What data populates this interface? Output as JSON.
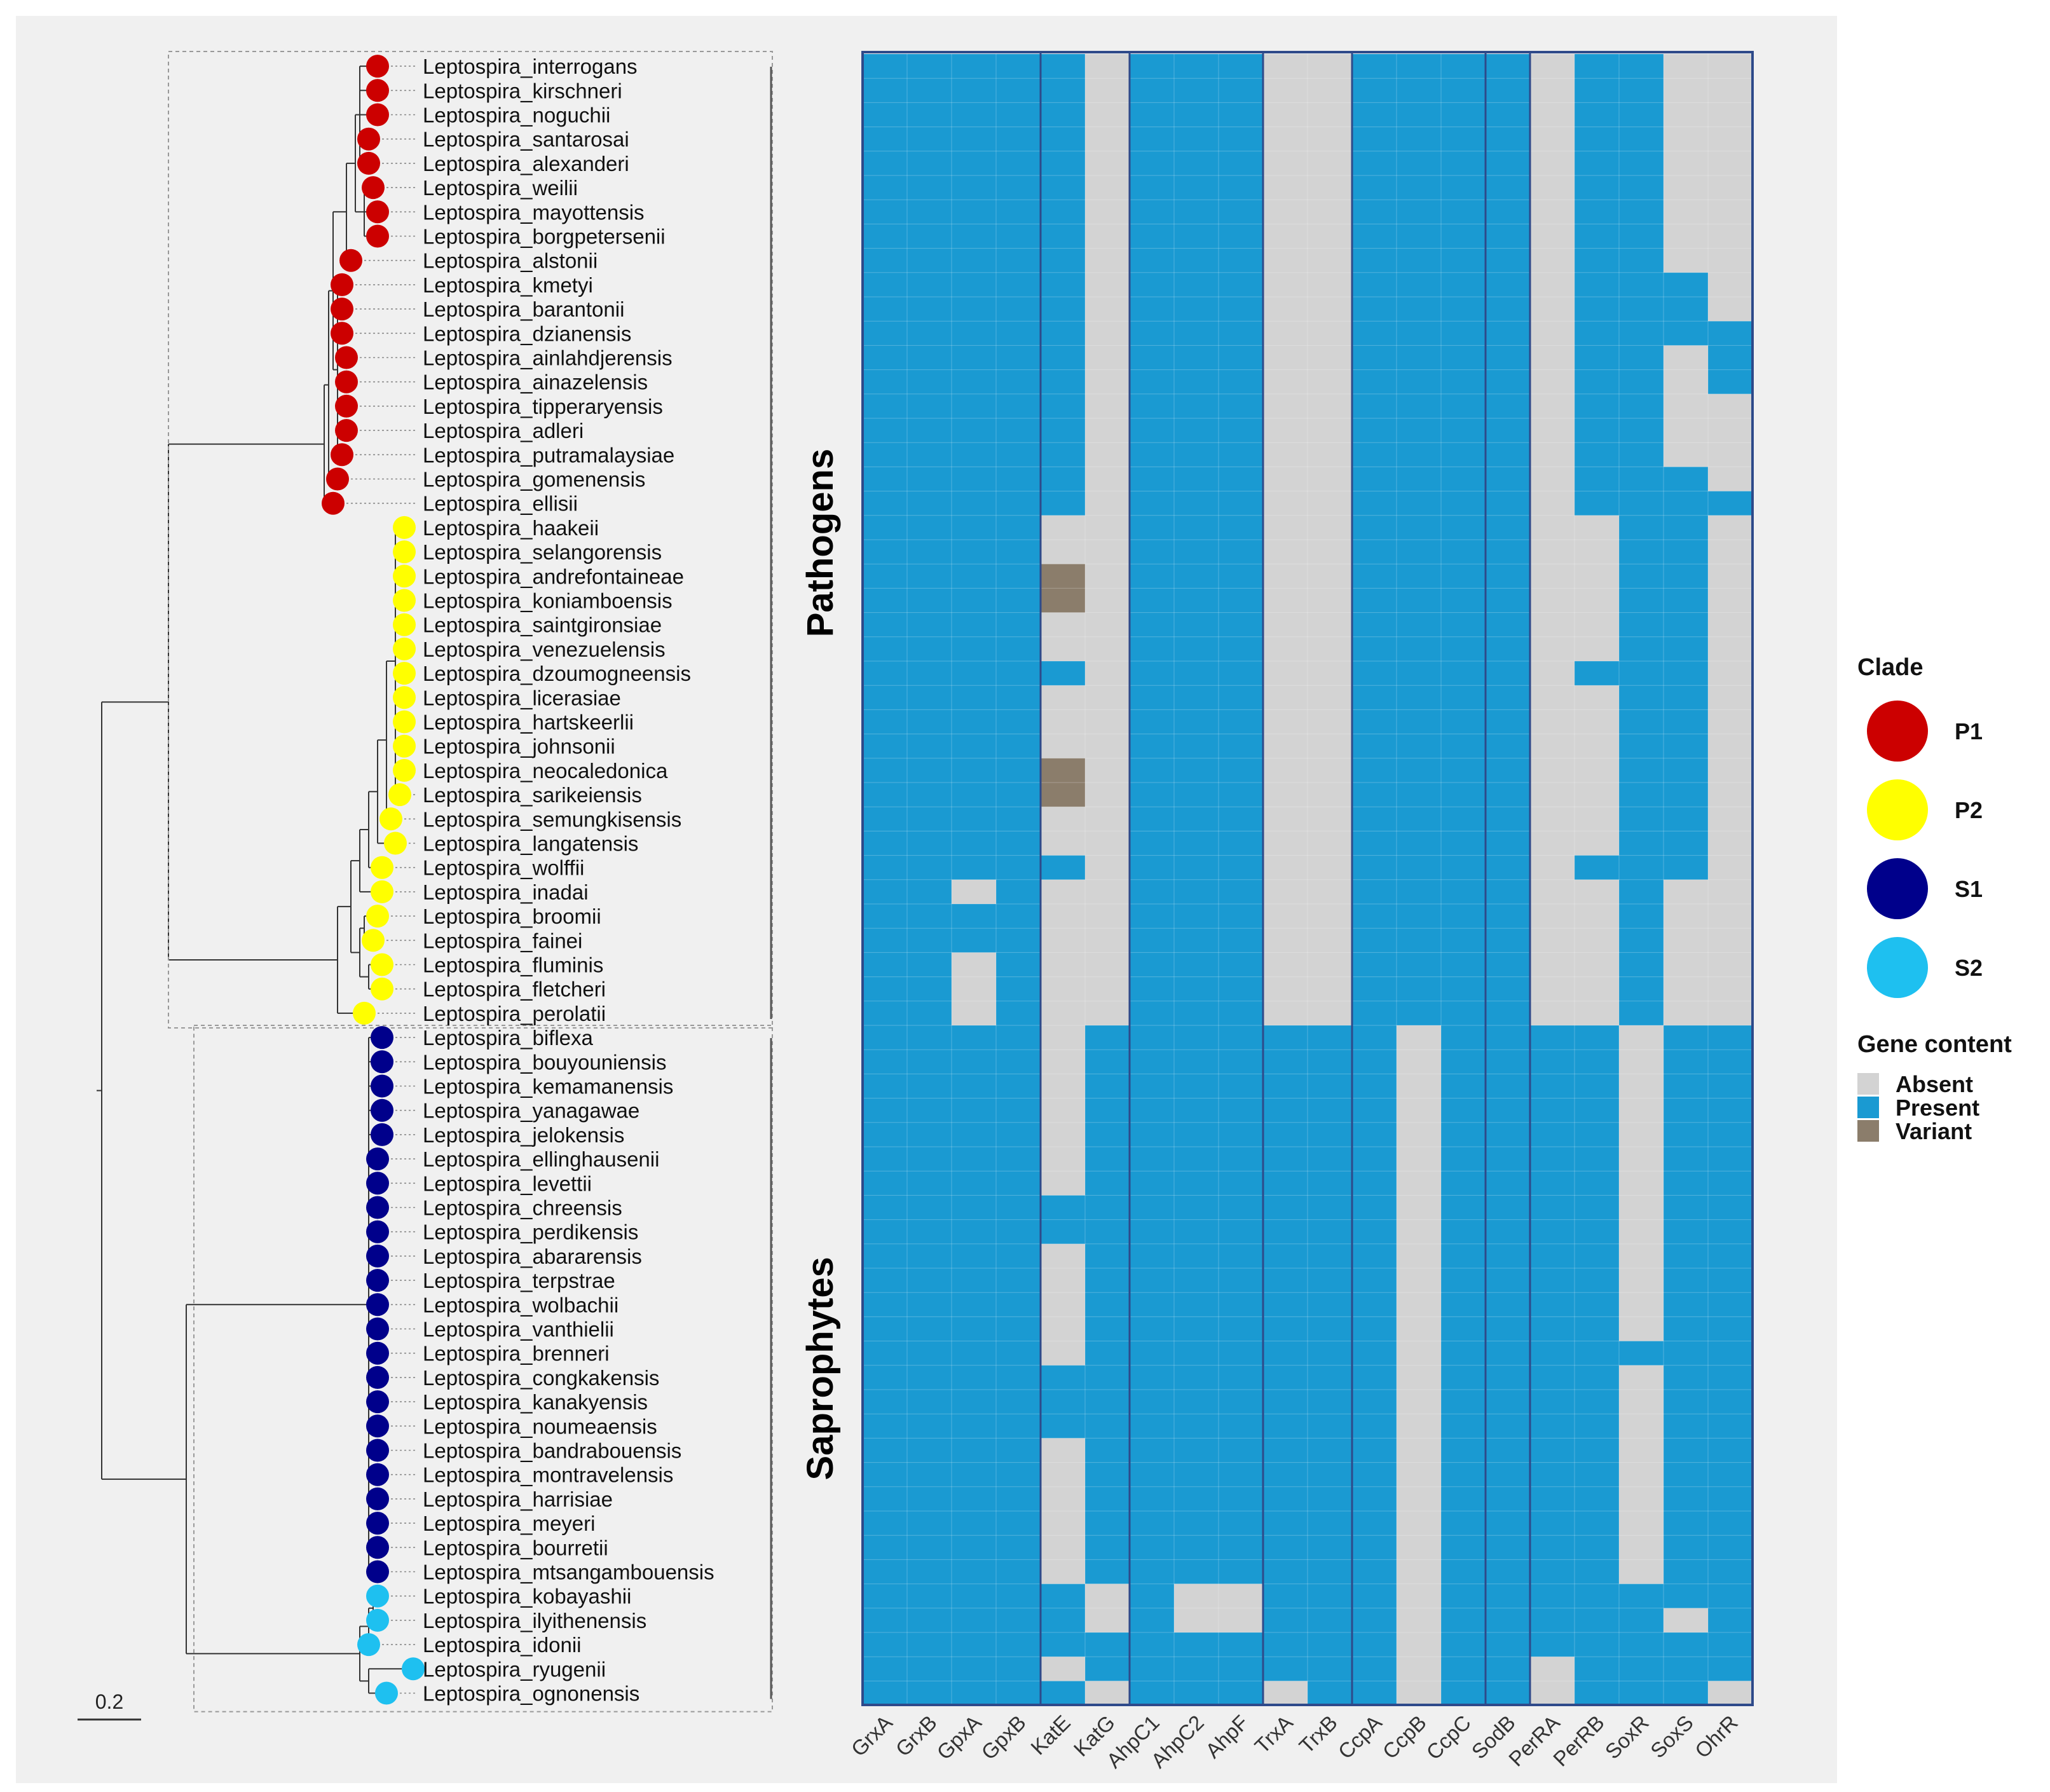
{
  "chart_data": {
    "type": "heatmap",
    "title": "",
    "genes": [
      "GrxA",
      "GrxB",
      "GpxA",
      "GpxB",
      "KatE",
      "KatG",
      "AhpC1",
      "AhpC2",
      "AhpF",
      "TrxA",
      "TrxB",
      "CcpA",
      "CcpB",
      "CcpC",
      "SodB",
      "PerRA",
      "PerRB",
      "SoxR",
      "SoxS",
      "OhrR"
    ],
    "species": [
      {
        "name": "Leptospira_interrogans",
        "clade": "P1",
        "depth": 0.62
      },
      {
        "name": "Leptospira_kirschneri",
        "clade": "P1",
        "depth": 0.62
      },
      {
        "name": "Leptospira_noguchii",
        "clade": "P1",
        "depth": 0.62
      },
      {
        "name": "Leptospira_santarosai",
        "clade": "P1",
        "depth": 0.6
      },
      {
        "name": "Leptospira_alexanderi",
        "clade": "P1",
        "depth": 0.6
      },
      {
        "name": "Leptospira_weilii",
        "clade": "P1",
        "depth": 0.61
      },
      {
        "name": "Leptospira_mayottensis",
        "clade": "P1",
        "depth": 0.62
      },
      {
        "name": "Leptospira_borgpetersenii",
        "clade": "P1",
        "depth": 0.62
      },
      {
        "name": "Leptospira_alstonii",
        "clade": "P1",
        "depth": 0.56
      },
      {
        "name": "Leptospira_kmetyi",
        "clade": "P1",
        "depth": 0.54
      },
      {
        "name": "Leptospira_barantonii",
        "clade": "P1",
        "depth": 0.54
      },
      {
        "name": "Leptospira_dzianensis",
        "clade": "P1",
        "depth": 0.54
      },
      {
        "name": "Leptospira_ainlahdjerensis",
        "clade": "P1",
        "depth": 0.55
      },
      {
        "name": "Leptospira_ainazelensis",
        "clade": "P1",
        "depth": 0.55
      },
      {
        "name": "Leptospira_tipperaryensis",
        "clade": "P1",
        "depth": 0.55
      },
      {
        "name": "Leptospira_adleri",
        "clade": "P1",
        "depth": 0.55
      },
      {
        "name": "Leptospira_putramalaysiae",
        "clade": "P1",
        "depth": 0.54
      },
      {
        "name": "Leptospira_gomenensis",
        "clade": "P1",
        "depth": 0.53
      },
      {
        "name": "Leptospira_ellisii",
        "clade": "P1",
        "depth": 0.52
      },
      {
        "name": "Leptospira_haakeii",
        "clade": "P2",
        "depth": 0.68
      },
      {
        "name": "Leptospira_selangorensis",
        "clade": "P2",
        "depth": 0.68
      },
      {
        "name": "Leptospira_andrefontaineae",
        "clade": "P2",
        "depth": 0.68
      },
      {
        "name": "Leptospira_koniamboensis",
        "clade": "P2",
        "depth": 0.68
      },
      {
        "name": "Leptospira_saintgironsiae",
        "clade": "P2",
        "depth": 0.68
      },
      {
        "name": "Leptospira_venezuelensis",
        "clade": "P2",
        "depth": 0.68
      },
      {
        "name": "Leptospira_dzoumogneensis",
        "clade": "P2",
        "depth": 0.68
      },
      {
        "name": "Leptospira_licerasiae",
        "clade": "P2",
        "depth": 0.68
      },
      {
        "name": "Leptospira_hartskeerlii",
        "clade": "P2",
        "depth": 0.68
      },
      {
        "name": "Leptospira_johnsonii",
        "clade": "P2",
        "depth": 0.68
      },
      {
        "name": "Leptospira_neocaledonica",
        "clade": "P2",
        "depth": 0.68
      },
      {
        "name": "Leptospira_sarikeiensis",
        "clade": "P2",
        "depth": 0.67
      },
      {
        "name": "Leptospira_semungkisensis",
        "clade": "P2",
        "depth": 0.65
      },
      {
        "name": "Leptospira_langatensis",
        "clade": "P2",
        "depth": 0.66
      },
      {
        "name": "Leptospira_wolffii",
        "clade": "P2",
        "depth": 0.63
      },
      {
        "name": "Leptospira_inadai",
        "clade": "P2",
        "depth": 0.63
      },
      {
        "name": "Leptospira_broomii",
        "clade": "P2",
        "depth": 0.62
      },
      {
        "name": "Leptospira_fainei",
        "clade": "P2",
        "depth": 0.61
      },
      {
        "name": "Leptospira_fluminis",
        "clade": "P2",
        "depth": 0.63
      },
      {
        "name": "Leptospira_fletcheri",
        "clade": "P2",
        "depth": 0.63
      },
      {
        "name": "Leptospira_perolatii",
        "clade": "P2",
        "depth": 0.59
      },
      {
        "name": "Leptospira_biflexa",
        "clade": "S1",
        "depth": 0.63
      },
      {
        "name": "Leptospira_bouyouniensis",
        "clade": "S1",
        "depth": 0.63
      },
      {
        "name": "Leptospira_kemamanensis",
        "clade": "S1",
        "depth": 0.63
      },
      {
        "name": "Leptospira_yanagawae",
        "clade": "S1",
        "depth": 0.63
      },
      {
        "name": "Leptospira_jelokensis",
        "clade": "S1",
        "depth": 0.63
      },
      {
        "name": "Leptospira_ellinghausenii",
        "clade": "S1",
        "depth": 0.62
      },
      {
        "name": "Leptospira_levettii",
        "clade": "S1",
        "depth": 0.62
      },
      {
        "name": "Leptospira_chreensis",
        "clade": "S1",
        "depth": 0.62
      },
      {
        "name": "Leptospira_perdikensis",
        "clade": "S1",
        "depth": 0.62
      },
      {
        "name": "Leptospira_abararensis",
        "clade": "S1",
        "depth": 0.62
      },
      {
        "name": "Leptospira_terpstrae",
        "clade": "S1",
        "depth": 0.62
      },
      {
        "name": "Leptospira_wolbachii",
        "clade": "S1",
        "depth": 0.62
      },
      {
        "name": "Leptospira_vanthielii",
        "clade": "S1",
        "depth": 0.62
      },
      {
        "name": "Leptospira_brenneri",
        "clade": "S1",
        "depth": 0.62
      },
      {
        "name": "Leptospira_congkakensis",
        "clade": "S1",
        "depth": 0.62
      },
      {
        "name": "Leptospira_kanakyensis",
        "clade": "S1",
        "depth": 0.62
      },
      {
        "name": "Leptospira_noumeaensis",
        "clade": "S1",
        "depth": 0.62
      },
      {
        "name": "Leptospira_bandrabouensis",
        "clade": "S1",
        "depth": 0.62
      },
      {
        "name": "Leptospira_montravelensis",
        "clade": "S1",
        "depth": 0.62
      },
      {
        "name": "Leptospira_harrisiae",
        "clade": "S1",
        "depth": 0.62
      },
      {
        "name": "Leptospira_meyeri",
        "clade": "S1",
        "depth": 0.62
      },
      {
        "name": "Leptospira_bourretii",
        "clade": "S1",
        "depth": 0.62
      },
      {
        "name": "Leptospira_mtsangambouensis",
        "clade": "S1",
        "depth": 0.62
      },
      {
        "name": "Leptospira_kobayashii",
        "clade": "S2",
        "depth": 0.62
      },
      {
        "name": "Leptospira_ilyithenensis",
        "clade": "S2",
        "depth": 0.62
      },
      {
        "name": "Leptospira_idonii",
        "clade": "S2",
        "depth": 0.6
      },
      {
        "name": "Leptospira_ryugenii",
        "clade": "S2",
        "depth": 0.7
      },
      {
        "name": "Leptospira_ognonensis",
        "clade": "S2",
        "depth": 0.64
      }
    ],
    "matrix": [
      "11111011100111101100",
      "11111011100111101100",
      "11111011100111101100",
      "11111011100111101100",
      "11111011100111101100",
      "11111011100111101100",
      "11111011100111101100",
      "11111011100111101100",
      "11111011100111101100",
      "11111011100111101110",
      "11111011100111101110",
      "11111011100111101111",
      "11111011100111101101",
      "11111011100111101101",
      "11111011100111101100",
      "11111011100111101100",
      "11111011100111101100",
      "11111011100111101110",
      "11111011100111101111",
      "11110011100111100110",
      "11110011100111100110",
      "11112011100111100110",
      "11112011100111100110",
      "11110011100111100110",
      "11110011100111100110",
      "11111011100111101110",
      "11110011100111100110",
      "11110011100111100110",
      "11110011100111100110",
      "11112011100111100110",
      "11112011100111100110",
      "11110011100111100110",
      "11110011100111100110",
      "11111011100111101110",
      "11010011100111100100",
      "11110011100111100100",
      "11110011100111100100",
      "11010011100111100100",
      "11010011100111100100",
      "11010011100111100100",
      "11110111111101111011",
      "11110111111101111011",
      "11110111111101111011",
      "11110111111101111011",
      "11110111111101111011",
      "11110111111101111011",
      "11110111111101111011",
      "11111111111101111011",
      "11111111111101111011",
      "11110111111101111011",
      "11110111111101111011",
      "11110111111101111011",
      "11110111111101111011",
      "11110111111101111111",
      "11111111111101111011",
      "11111111111101111011",
      "11111111111101111011",
      "11110111111101111011",
      "11110111111101111011",
      "11110111111101111011",
      "11110111111101111011",
      "11110111111101111011",
      "11110111111101111011",
      "11111010011101111111",
      "11111010011101111101",
      "11111111111101111111",
      "11110111111101101111",
      "11111011101101101110"
    ],
    "groups": [
      {
        "label": "Pathogens",
        "from": "Leptospira_interrogans",
        "to": "Leptospira_perolatii"
      },
      {
        "label": "Saprophytes",
        "from": "Leptospira_biflexa",
        "to": "Leptospira_ognonensis"
      }
    ],
    "legend": {
      "clade_title": "Clade",
      "clades": [
        {
          "key": "P1",
          "label": "P1",
          "color": "#cc0000"
        },
        {
          "key": "P2",
          "label": "P2",
          "color": "#ffff00"
        },
        {
          "key": "S1",
          "label": "S1",
          "color": "#00008b"
        },
        {
          "key": "S2",
          "label": "S2",
          "color": "#1ec0f0"
        }
      ],
      "gene_title": "Gene content",
      "states": [
        {
          "code": "0",
          "label": "Absent",
          "color": "#d3d3d3"
        },
        {
          "code": "1",
          "label": "Present",
          "color": "#1a9ad2"
        },
        {
          "code": "2",
          "label": "Variant",
          "color": "#8b7d6b"
        }
      ]
    },
    "scale_bar": "0.2"
  }
}
